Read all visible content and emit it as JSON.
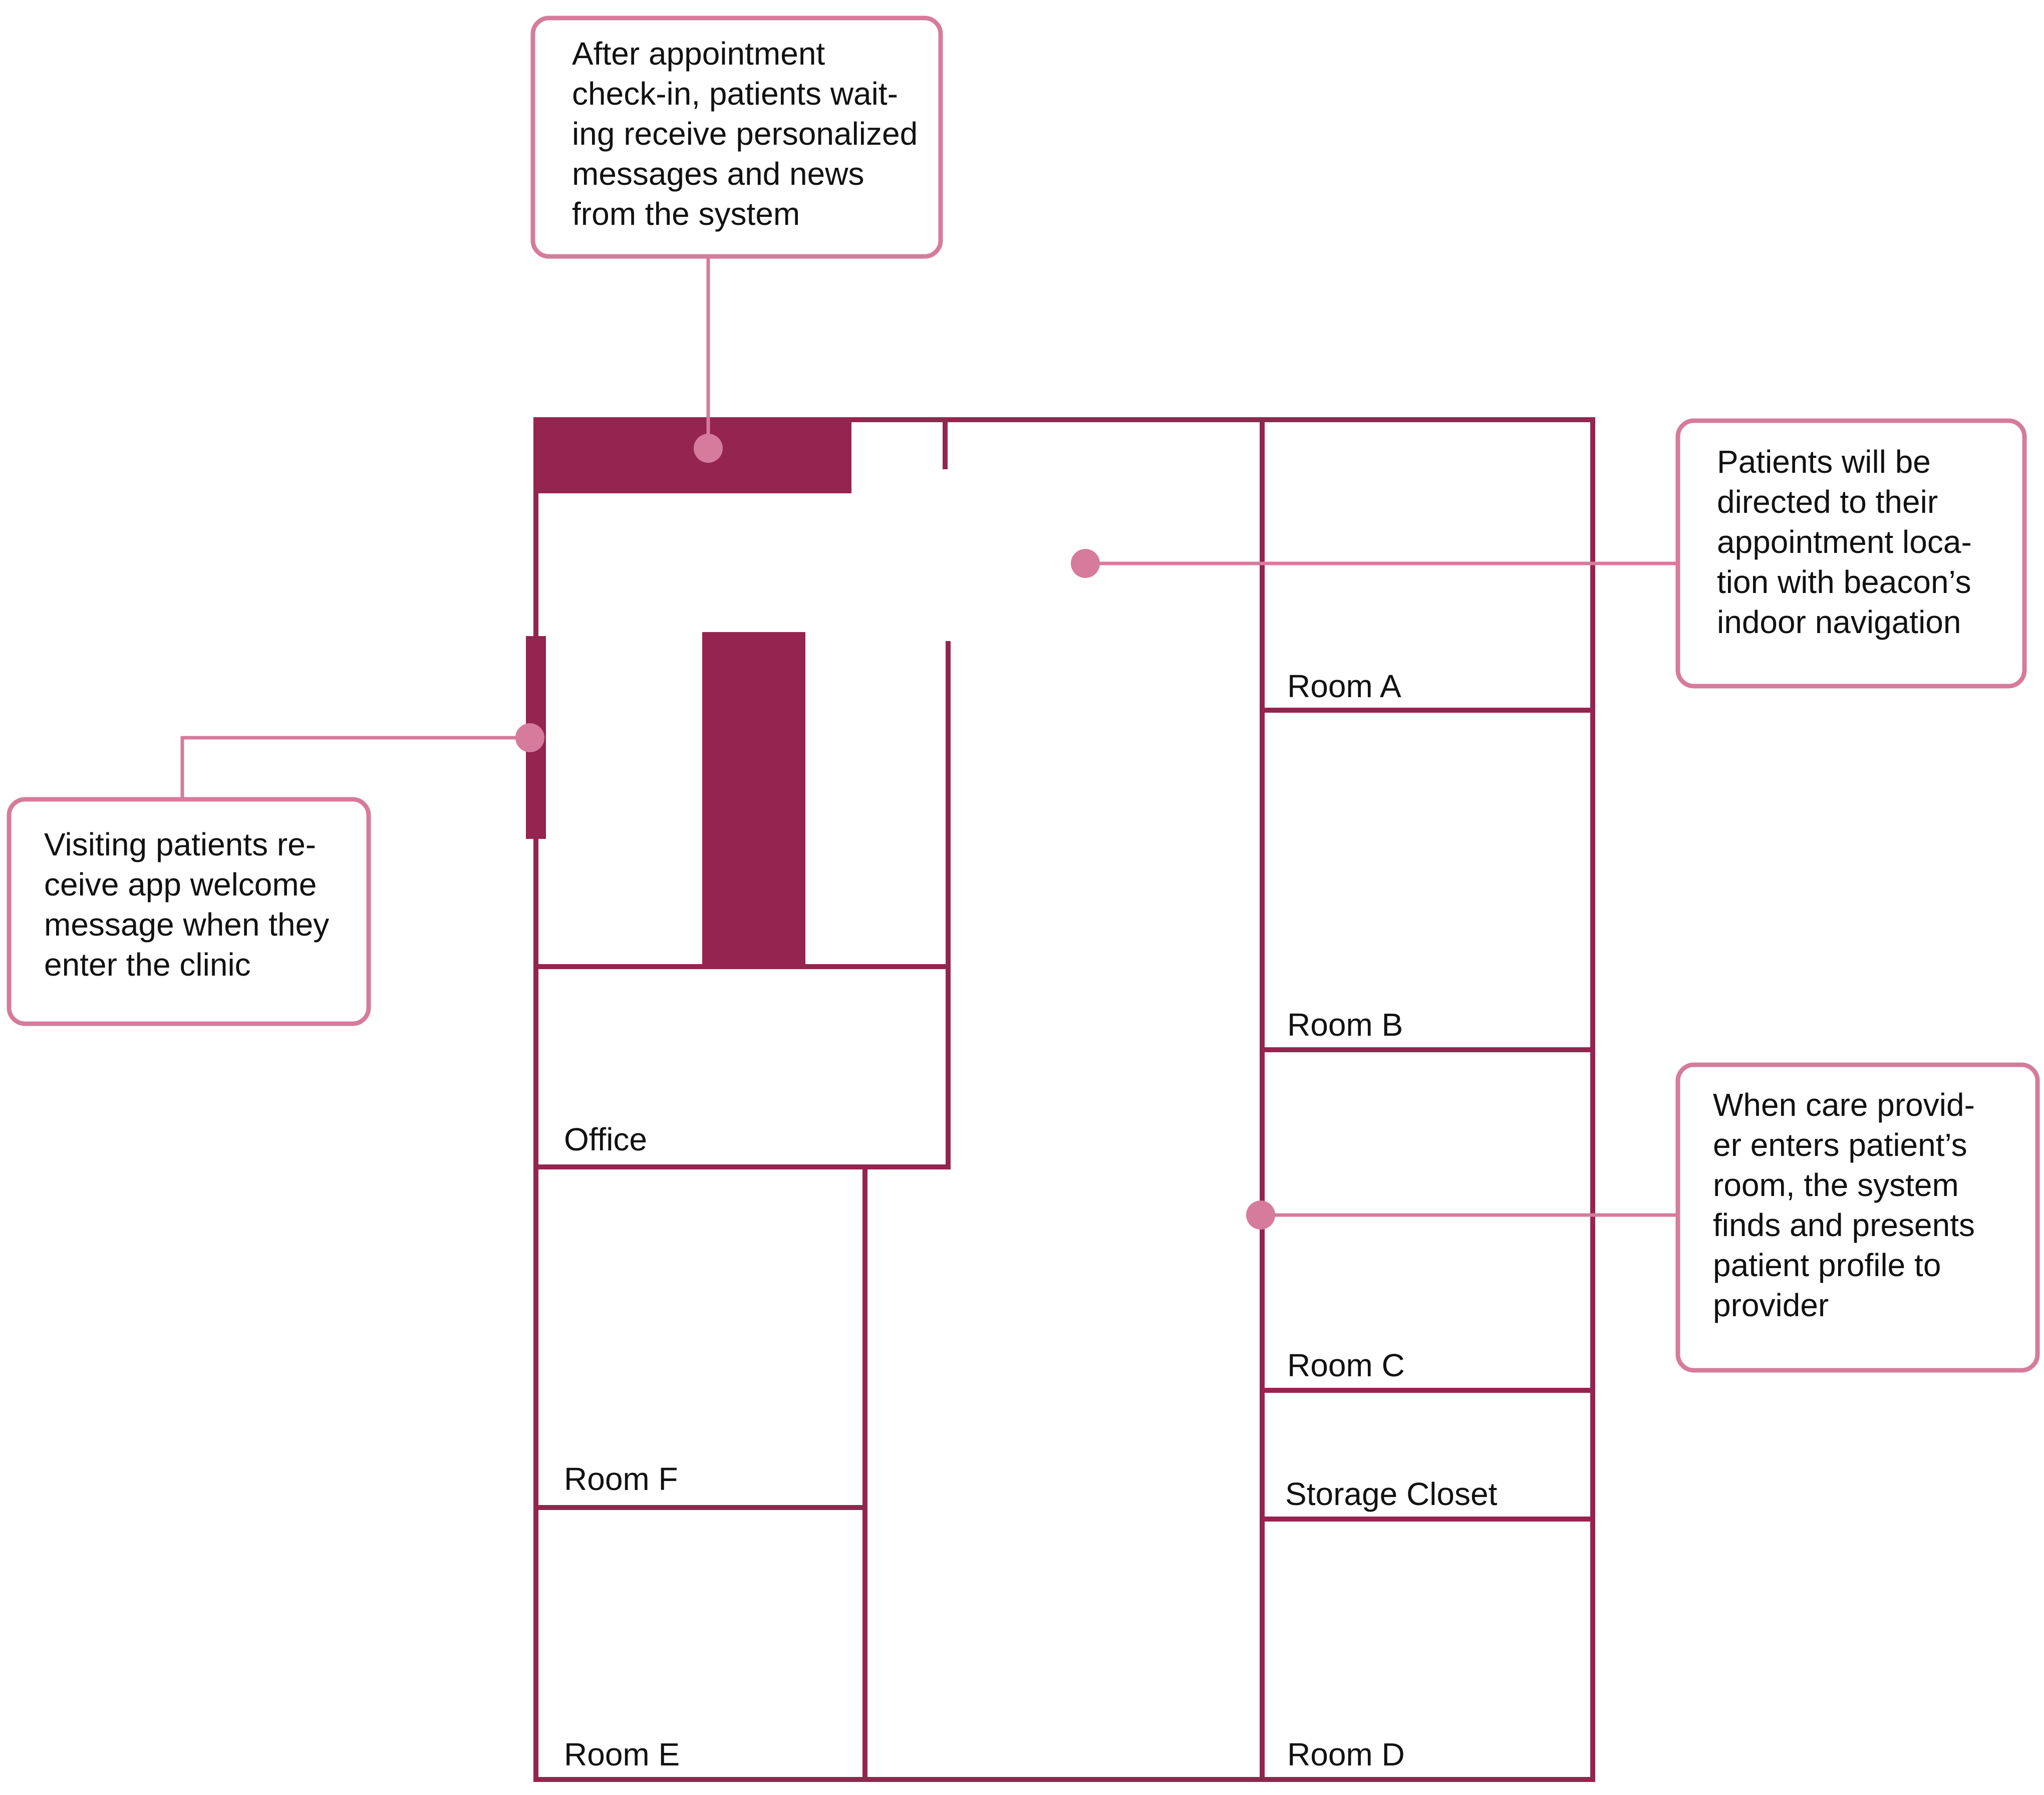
{
  "colors": {
    "wall": "#93254F",
    "callout_accent": "#D67B9C",
    "text": "#111111",
    "background": "#ffffff"
  },
  "rooms": {
    "room_a": "Room A",
    "room_b": "Room B",
    "room_c": "Room C",
    "room_d": "Room D",
    "room_e": "Room E",
    "room_f": "Room F",
    "office": "Office",
    "storage": "Storage Closet"
  },
  "callouts": {
    "checkin": {
      "lines": [
        "After appointment",
        "check-in, patients wait-",
        "ing receive personalized",
        "messages and news",
        "from the system"
      ]
    },
    "navigation": {
      "lines": [
        "Patients will be",
        "directed to their",
        "appointment loca-",
        "tion with beacon’s",
        "indoor navigation"
      ]
    },
    "welcome": {
      "lines": [
        "Visiting patients re-",
        "ceive app welcome",
        "message when they",
        "enter the clinic"
      ]
    },
    "provider": {
      "lines": [
        "When care provid-",
        "er enters patient’s",
        "room, the system",
        "finds and presents",
        "patient profile to",
        "provider"
      ]
    }
  }
}
